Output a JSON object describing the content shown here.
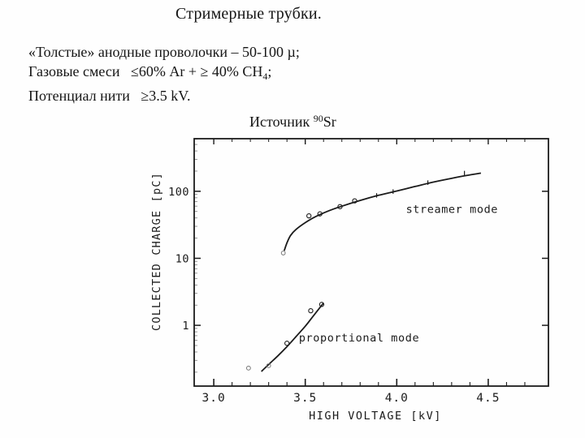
{
  "slide": {
    "title": "Стримерные трубки."
  },
  "info": {
    "line1": "«Толстые» анодные проволочки – 50-100 µ;",
    "line2": {
      "prefix": "Газовые смеси   ≤60% Ar + ≥ 40% CH",
      "sub": "4",
      "suffix": ";"
    },
    "line3": "Потенциал нити   ≥3.5 kV."
  },
  "figure": {
    "caption": {
      "prefix": "Источник ",
      "sup": "90",
      "suffix": "Sr"
    }
  },
  "colors": {
    "ink": "#1b1b1b",
    "faint_ink": "#777777",
    "background": "#fefefe"
  },
  "chart_data": {
    "type": "line",
    "x_scale": "linear",
    "y_scale": "log",
    "xlabel": "HIGH  VOLTAGE  [kV]",
    "ylabel": "COLLECTED  CHARGE  [pC]",
    "xlim": [
      2.893,
      4.829
    ],
    "ylim": [
      0.124,
      609
    ],
    "x_major_ticks": [
      3.0,
      3.5,
      4.0,
      4.5
    ],
    "x_tick_labels": [
      "3.0",
      "3.5",
      "4.0",
      "4.5"
    ],
    "x_minor_step": 0.1,
    "x_minor_range": [
      3.0,
      4.7
    ],
    "y_major_ticks": [
      1,
      10,
      100
    ],
    "y_tick_labels": [
      "1",
      "10",
      "100"
    ],
    "grid": false,
    "legend_position": "inline-labels",
    "series": [
      {
        "name": "streamer mode",
        "label": "streamer mode",
        "label_anchor": [
          4.05,
          55
        ],
        "curve": [
          [
            3.385,
            13
          ],
          [
            3.4,
            17
          ],
          [
            3.42,
            22
          ],
          [
            3.45,
            27
          ],
          [
            3.5,
            34
          ],
          [
            3.55,
            41
          ],
          [
            3.62,
            50
          ],
          [
            3.7,
            60
          ],
          [
            3.8,
            73
          ],
          [
            3.9,
            87
          ],
          [
            4.0,
            101
          ],
          [
            4.1,
            118
          ],
          [
            4.2,
            137
          ],
          [
            4.3,
            156
          ],
          [
            4.38,
            172
          ],
          [
            4.46,
            187
          ]
        ],
        "points": [
          [
            3.52,
            43
          ],
          [
            3.58,
            46
          ],
          [
            3.69,
            59
          ],
          [
            3.77,
            72
          ]
        ],
        "points_faint": [
          [
            3.38,
            12
          ]
        ],
        "tick_markers": [
          [
            3.89,
            85
          ],
          [
            3.98,
            97
          ],
          [
            4.17,
            132
          ],
          [
            4.37,
            183
          ]
        ]
      },
      {
        "name": "proportional mode",
        "label": "proportional mode",
        "label_anchor": [
          3.465,
          0.66
        ],
        "curve": [
          [
            3.26,
            0.205
          ],
          [
            3.3,
            0.26
          ],
          [
            3.35,
            0.35
          ],
          [
            3.4,
            0.48
          ],
          [
            3.45,
            0.68
          ],
          [
            3.5,
            0.97
          ],
          [
            3.55,
            1.45
          ],
          [
            3.6,
            2.15
          ]
        ],
        "points": [
          [
            3.4,
            0.54
          ],
          [
            3.53,
            1.65
          ],
          [
            3.59,
            2.05
          ]
        ],
        "points_faint": [
          [
            3.19,
            0.23
          ],
          [
            3.3,
            0.25
          ]
        ],
        "tick_markers": []
      }
    ]
  }
}
